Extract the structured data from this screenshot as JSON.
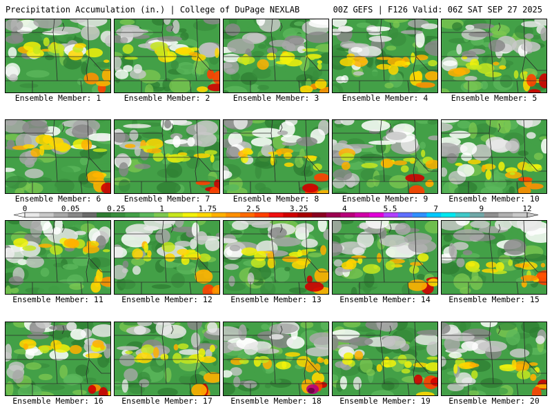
{
  "header": {
    "title_left": "Precipitation Accumulation (in.) | College of DuPage NEXLAB",
    "title_right": "00Z GEFS | F126 Valid: 06Z SAT SEP 27 2025"
  },
  "colors": {
    "background": "#ffffff",
    "map_border": "#000000",
    "state_lines": "#2a2a2a"
  },
  "panels": [
    {
      "member": 1,
      "label": "Ensemble Member: 1"
    },
    {
      "member": 2,
      "label": "Ensemble Member: 2"
    },
    {
      "member": 3,
      "label": "Ensemble Member: 3"
    },
    {
      "member": 4,
      "label": "Ensemble Member: 4"
    },
    {
      "member": 5,
      "label": "Ensemble Member: 5"
    },
    {
      "member": 6,
      "label": "Ensemble Member: 6"
    },
    {
      "member": 7,
      "label": "Ensemble Member: 7"
    },
    {
      "member": 8,
      "label": "Ensemble Member: 8"
    },
    {
      "member": 9,
      "label": "Ensemble Member: 9"
    },
    {
      "member": 10,
      "label": "Ensemble Member: 10"
    },
    {
      "member": 11,
      "label": "Ensemble Member: 11"
    },
    {
      "member": 12,
      "label": "Ensemble Member: 12"
    },
    {
      "member": 13,
      "label": "Ensemble Member: 13"
    },
    {
      "member": 14,
      "label": "Ensemble Member: 14"
    },
    {
      "member": 15,
      "label": "Ensemble Member: 15"
    },
    {
      "member": 16,
      "label": "Ensemble Member: 16"
    },
    {
      "member": 17,
      "label": "Ensemble Member: 17"
    },
    {
      "member": 18,
      "label": "Ensemble Member: 18"
    },
    {
      "member": 19,
      "label": "Ensemble Member: 19"
    },
    {
      "member": 20,
      "label": "Ensemble Member: 20"
    }
  ],
  "colorbar": {
    "tick_labels": [
      "0",
      "0.05",
      "0.25",
      "1",
      "1.75",
      "2.5",
      "3.25",
      "4",
      "5.5",
      "7",
      "9",
      "12"
    ],
    "bin_colors": [
      "#e8e8e8",
      "#c8c8c8",
      "#a8a8a8",
      "#888888",
      "#6a6a6a",
      "#2e7d32",
      "#388e3c",
      "#43a047",
      "#5cb85c",
      "#7ec850",
      "#c6e61e",
      "#f2f20a",
      "#ffd700",
      "#ffb000",
      "#ff9000",
      "#ff6a00",
      "#ff4000",
      "#f01010",
      "#d00000",
      "#a80000",
      "#8a0020",
      "#9c0050",
      "#b8007a",
      "#d000a8",
      "#e000d8",
      "#b040ff",
      "#6070ff",
      "#3090ff",
      "#00c8ff",
      "#00e8f0",
      "#40c8c8",
      "#70a8a8",
      "#909090",
      "#b0b0b0",
      "#c8c8c8"
    ]
  }
}
